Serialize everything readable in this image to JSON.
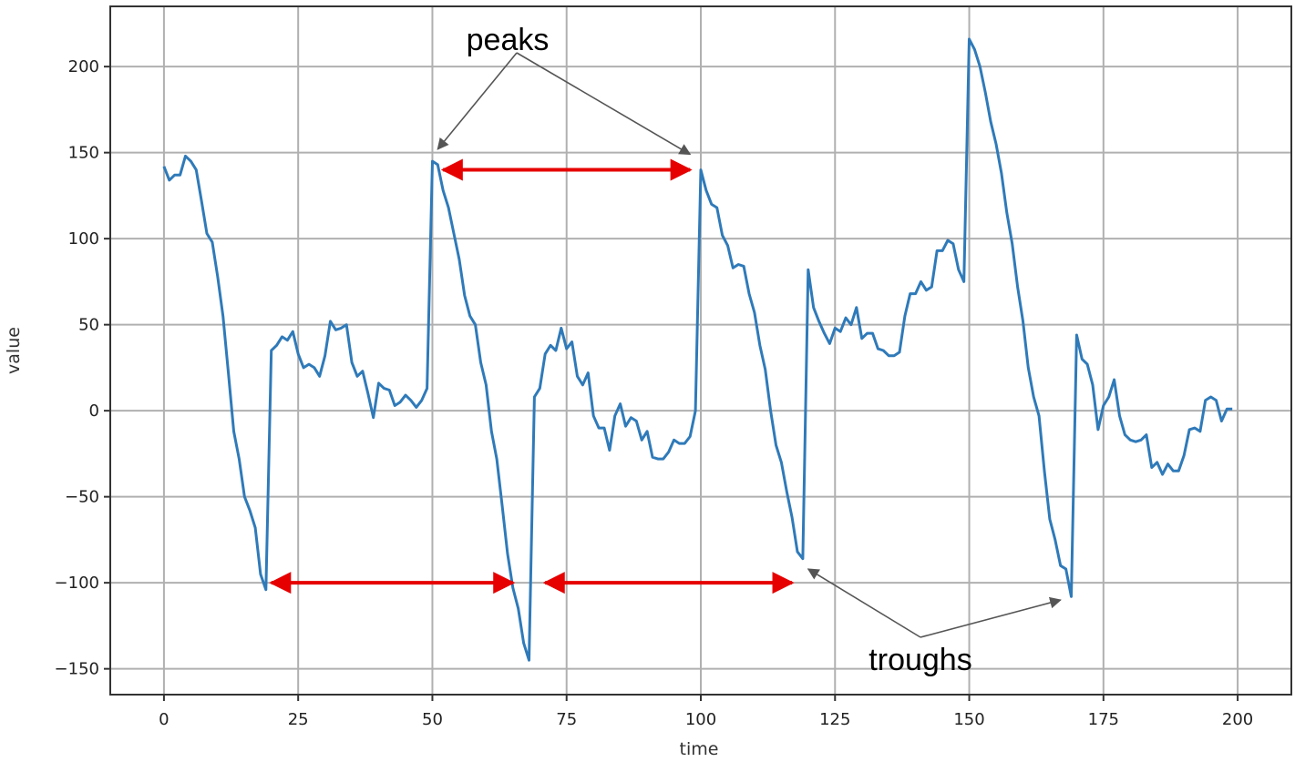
{
  "chart_data": {
    "type": "line",
    "title": "",
    "xlabel": "time",
    "ylabel": "value",
    "xlim": [
      -10,
      210
    ],
    "ylim": [
      -165,
      235
    ],
    "x_ticks": [
      0,
      25,
      50,
      75,
      100,
      125,
      150,
      175,
      200
    ],
    "y_ticks": [
      -150,
      -100,
      -50,
      0,
      50,
      100,
      150,
      200
    ],
    "x_tick_labels": [
      "0",
      "25",
      "50",
      "75",
      "100",
      "125",
      "150",
      "175",
      "200"
    ],
    "y_tick_labels": [
      "−150",
      "−100",
      "−50",
      "0",
      "50",
      "100",
      "150",
      "200"
    ],
    "grid": true,
    "line_color": "#2f7ab9",
    "series": [
      {
        "color": "#2f7ab9",
        "points": [
          [
            0,
            142
          ],
          [
            1,
            134
          ],
          [
            2,
            137
          ],
          [
            3,
            137
          ],
          [
            4,
            148
          ],
          [
            5,
            145
          ],
          [
            6,
            140
          ],
          [
            7,
            122
          ],
          [
            8,
            103
          ],
          [
            9,
            98
          ],
          [
            10,
            78
          ],
          [
            11,
            55
          ],
          [
            12,
            22
          ],
          [
            13,
            -12
          ],
          [
            14,
            -28
          ],
          [
            15,
            -50
          ],
          [
            16,
            -58
          ],
          [
            17,
            -68
          ],
          [
            18,
            -95
          ],
          [
            19,
            -104
          ],
          [
            20,
            35
          ],
          [
            21,
            38
          ],
          [
            22,
            43
          ],
          [
            23,
            41
          ],
          [
            24,
            46
          ],
          [
            25,
            33
          ],
          [
            26,
            25
          ],
          [
            27,
            27
          ],
          [
            28,
            25
          ],
          [
            29,
            20
          ],
          [
            30,
            32
          ],
          [
            31,
            52
          ],
          [
            32,
            47
          ],
          [
            33,
            48
          ],
          [
            34,
            50
          ],
          [
            35,
            28
          ],
          [
            36,
            20
          ],
          [
            37,
            23
          ],
          [
            38,
            10
          ],
          [
            39,
            -4
          ],
          [
            40,
            16
          ],
          [
            41,
            13
          ],
          [
            42,
            12
          ],
          [
            43,
            3
          ],
          [
            44,
            5
          ],
          [
            45,
            9
          ],
          [
            46,
            6
          ],
          [
            47,
            2
          ],
          [
            48,
            6
          ],
          [
            49,
            13
          ],
          [
            50,
            145
          ],
          [
            51,
            143
          ],
          [
            52,
            128
          ],
          [
            53,
            118
          ],
          [
            54,
            103
          ],
          [
            55,
            88
          ],
          [
            56,
            67
          ],
          [
            57,
            55
          ],
          [
            58,
            50
          ],
          [
            59,
            28
          ],
          [
            60,
            15
          ],
          [
            61,
            -12
          ],
          [
            62,
            -28
          ],
          [
            63,
            -55
          ],
          [
            64,
            -83
          ],
          [
            65,
            -103
          ],
          [
            66,
            -115
          ],
          [
            67,
            -135
          ],
          [
            68,
            -145
          ],
          [
            69,
            8
          ],
          [
            70,
            13
          ],
          [
            71,
            33
          ],
          [
            72,
            38
          ],
          [
            73,
            35
          ],
          [
            74,
            48
          ],
          [
            75,
            36
          ],
          [
            76,
            40
          ],
          [
            77,
            20
          ],
          [
            78,
            15
          ],
          [
            79,
            22
          ],
          [
            80,
            -3
          ],
          [
            81,
            -10
          ],
          [
            82,
            -10
          ],
          [
            83,
            -23
          ],
          [
            84,
            -3
          ],
          [
            85,
            4
          ],
          [
            86,
            -9
          ],
          [
            87,
            -4
          ],
          [
            88,
            -6
          ],
          [
            89,
            -17
          ],
          [
            90,
            -12
          ],
          [
            91,
            -27
          ],
          [
            92,
            -28
          ],
          [
            93,
            -28
          ],
          [
            94,
            -24
          ],
          [
            95,
            -17
          ],
          [
            96,
            -19
          ],
          [
            97,
            -19
          ],
          [
            98,
            -15
          ],
          [
            99,
            0
          ],
          [
            100,
            140
          ],
          [
            101,
            128
          ],
          [
            102,
            120
          ],
          [
            103,
            118
          ],
          [
            104,
            102
          ],
          [
            105,
            96
          ],
          [
            106,
            83
          ],
          [
            107,
            85
          ],
          [
            108,
            84
          ],
          [
            109,
            68
          ],
          [
            110,
            57
          ],
          [
            111,
            38
          ],
          [
            112,
            24
          ],
          [
            113,
            0
          ],
          [
            114,
            -20
          ],
          [
            115,
            -30
          ],
          [
            116,
            -47
          ],
          [
            117,
            -62
          ],
          [
            118,
            -82
          ],
          [
            119,
            -86
          ],
          [
            120,
            82
          ],
          [
            121,
            60
          ],
          [
            122,
            52
          ],
          [
            123,
            45
          ],
          [
            124,
            39
          ],
          [
            125,
            48
          ],
          [
            126,
            46
          ],
          [
            127,
            54
          ],
          [
            128,
            50
          ],
          [
            129,
            60
          ],
          [
            130,
            42
          ],
          [
            131,
            45
          ],
          [
            132,
            45
          ],
          [
            133,
            36
          ],
          [
            134,
            35
          ],
          [
            135,
            32
          ],
          [
            136,
            32
          ],
          [
            137,
            34
          ],
          [
            138,
            55
          ],
          [
            139,
            68
          ],
          [
            140,
            68
          ],
          [
            141,
            75
          ],
          [
            142,
            70
          ],
          [
            143,
            72
          ],
          [
            144,
            93
          ],
          [
            145,
            93
          ],
          [
            146,
            99
          ],
          [
            147,
            97
          ],
          [
            148,
            82
          ],
          [
            149,
            75
          ],
          [
            150,
            216
          ],
          [
            151,
            210
          ],
          [
            152,
            200
          ],
          [
            153,
            185
          ],
          [
            154,
            168
          ],
          [
            155,
            155
          ],
          [
            156,
            138
          ],
          [
            157,
            115
          ],
          [
            158,
            97
          ],
          [
            159,
            72
          ],
          [
            160,
            52
          ],
          [
            161,
            25
          ],
          [
            162,
            8
          ],
          [
            163,
            -3
          ],
          [
            164,
            -35
          ],
          [
            165,
            -63
          ],
          [
            166,
            -75
          ],
          [
            167,
            -90
          ],
          [
            168,
            -92
          ],
          [
            169,
            -108
          ],
          [
            170,
            44
          ],
          [
            171,
            30
          ],
          [
            172,
            27
          ],
          [
            173,
            15
          ],
          [
            174,
            -11
          ],
          [
            175,
            3
          ],
          [
            176,
            8
          ],
          [
            177,
            18
          ],
          [
            178,
            -3
          ],
          [
            179,
            -14
          ],
          [
            180,
            -17
          ],
          [
            181,
            -18
          ],
          [
            182,
            -17
          ],
          [
            183,
            -14
          ],
          [
            184,
            -33
          ],
          [
            185,
            -30
          ],
          [
            186,
            -37
          ],
          [
            187,
            -31
          ],
          [
            188,
            -35
          ],
          [
            189,
            -35
          ],
          [
            190,
            -26
          ],
          [
            191,
            -11
          ],
          [
            192,
            -10
          ],
          [
            193,
            -12
          ],
          [
            194,
            6
          ],
          [
            195,
            8
          ],
          [
            196,
            6
          ],
          [
            197,
            -6
          ],
          [
            198,
            1
          ],
          [
            199,
            1
          ]
        ]
      }
    ],
    "annotations": [
      {
        "text": "peaks",
        "arrows_to": [
          [
            51,
            152
          ],
          [
            98,
            149
          ]
        ]
      },
      {
        "text": "troughs",
        "arrows_to": [
          [
            120,
            -92
          ],
          [
            167,
            -110
          ]
        ]
      }
    ],
    "spans": [
      {
        "from": [
          52,
          140
        ],
        "to": [
          98,
          140
        ],
        "color": "#e60000"
      },
      {
        "from": [
          20,
          -100
        ],
        "to": [
          65,
          -100
        ],
        "color": "#e60000"
      },
      {
        "from": [
          71,
          -100
        ],
        "to": [
          117,
          -100
        ],
        "color": "#e60000"
      }
    ]
  }
}
